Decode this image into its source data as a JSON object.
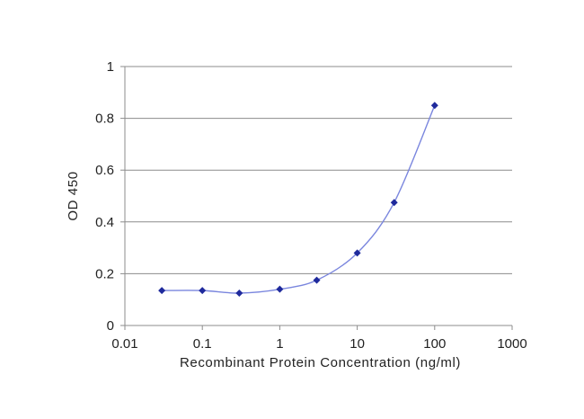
{
  "chart_data": {
    "type": "line",
    "title": "",
    "xlabel": "Recombinant Protein Concentration (ng/ml)",
    "ylabel": "OD 450",
    "x_scale": "log",
    "xlim": [
      0.01,
      1000
    ],
    "ylim": [
      0,
      1
    ],
    "x_ticks": [
      0.01,
      0.1,
      1,
      10,
      100,
      1000
    ],
    "x_tick_labels": [
      "0.01",
      "0.1",
      "1",
      "10",
      "100",
      "1000"
    ],
    "y_ticks": [
      0,
      0.2,
      0.4,
      0.6,
      0.8,
      1
    ],
    "y_tick_labels": [
      "0",
      "0.2",
      "0.4",
      "0.6",
      "0.8",
      "1"
    ],
    "grid": "horizontal",
    "legend": "none",
    "series": [
      {
        "x": [
          0.03,
          0.1,
          0.3,
          1,
          3,
          10,
          30,
          100
        ],
        "y": [
          0.135,
          0.135,
          0.125,
          0.14,
          0.175,
          0.28,
          0.475,
          0.85
        ]
      }
    ],
    "colors": {
      "line": "#7a86de",
      "marker": "#1f2a9c",
      "grid": "#8c8c8c",
      "axis": "#8c8c8c"
    }
  }
}
